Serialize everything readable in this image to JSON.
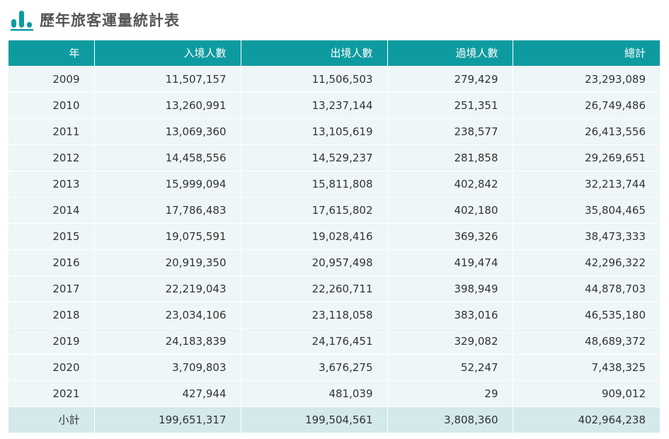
{
  "header": {
    "title": "歷年旅客運量統計表",
    "icon": "bar-chart-icon",
    "icon_color": "#0e9ba0"
  },
  "colors": {
    "header_bg": "#0e9ba0",
    "row_bg": "#eef6f7",
    "subtotal_bg": "#d3e9ec"
  },
  "table": {
    "columns": [
      "年",
      "入境人數",
      "出境人數",
      "過境人數",
      "總計"
    ],
    "rows": [
      [
        "2009",
        "11,507,157",
        "11,506,503",
        "279,429",
        "23,293,089"
      ],
      [
        "2010",
        "13,260,991",
        "13,237,144",
        "251,351",
        "26,749,486"
      ],
      [
        "2011",
        "13,069,360",
        "13,105,619",
        "238,577",
        "26,413,556"
      ],
      [
        "2012",
        "14,458,556",
        "14,529,237",
        "281,858",
        "29,269,651"
      ],
      [
        "2013",
        "15,999,094",
        "15,811,808",
        "402,842",
        "32,213,744"
      ],
      [
        "2014",
        "17,786,483",
        "17,615,802",
        "402,180",
        "35,804,465"
      ],
      [
        "2015",
        "19,075,591",
        "19,028,416",
        "369,326",
        "38,473,333"
      ],
      [
        "2016",
        "20,919,350",
        "20,957,498",
        "419,474",
        "42,296,322"
      ],
      [
        "2017",
        "22,219,043",
        "22,260,711",
        "398,949",
        "44,878,703"
      ],
      [
        "2018",
        "23,034,106",
        "23,118,058",
        "383,016",
        "46,535,180"
      ],
      [
        "2019",
        "24,183,839",
        "24,176,451",
        "329,082",
        "48,689,372"
      ],
      [
        "2020",
        "3,709,803",
        "3,676,275",
        "52,247",
        "7,438,325"
      ],
      [
        "2021",
        "427,944",
        "481,039",
        "29",
        "909,012"
      ]
    ],
    "subtotal": [
      "小計",
      "199,651,317",
      "199,504,561",
      "3,808,360",
      "402,964,238"
    ]
  }
}
